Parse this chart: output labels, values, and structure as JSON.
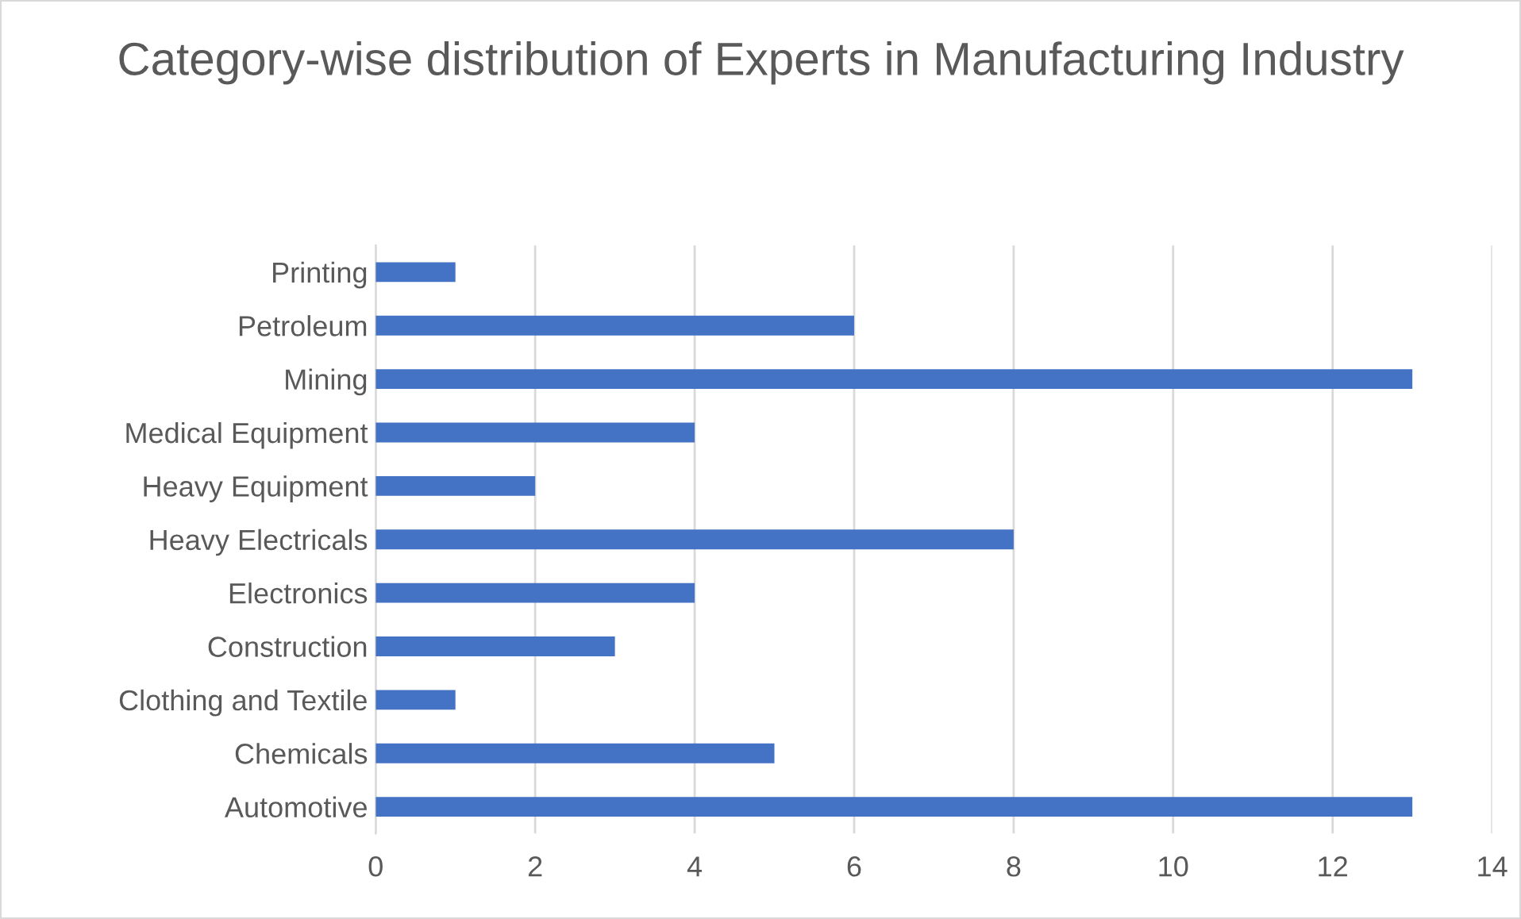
{
  "chart_data": {
    "type": "bar",
    "orientation": "horizontal",
    "title": "Category-wise distribution of Experts in Manufacturing Industry",
    "categories": [
      "Printing",
      "Petroleum",
      "Mining",
      "Medical Equipment",
      "Heavy Equipment",
      "Heavy Electricals",
      "Electronics",
      "Construction",
      "Clothing and Textile",
      "Chemicals",
      "Automotive"
    ],
    "values": [
      1,
      6,
      13,
      4,
      2,
      8,
      4,
      3,
      1,
      5,
      13
    ],
    "color": "#4472c4",
    "xlim": [
      0,
      14
    ],
    "xticks": [
      0,
      2,
      4,
      6,
      8,
      10,
      12,
      14
    ],
    "grid": "x"
  }
}
